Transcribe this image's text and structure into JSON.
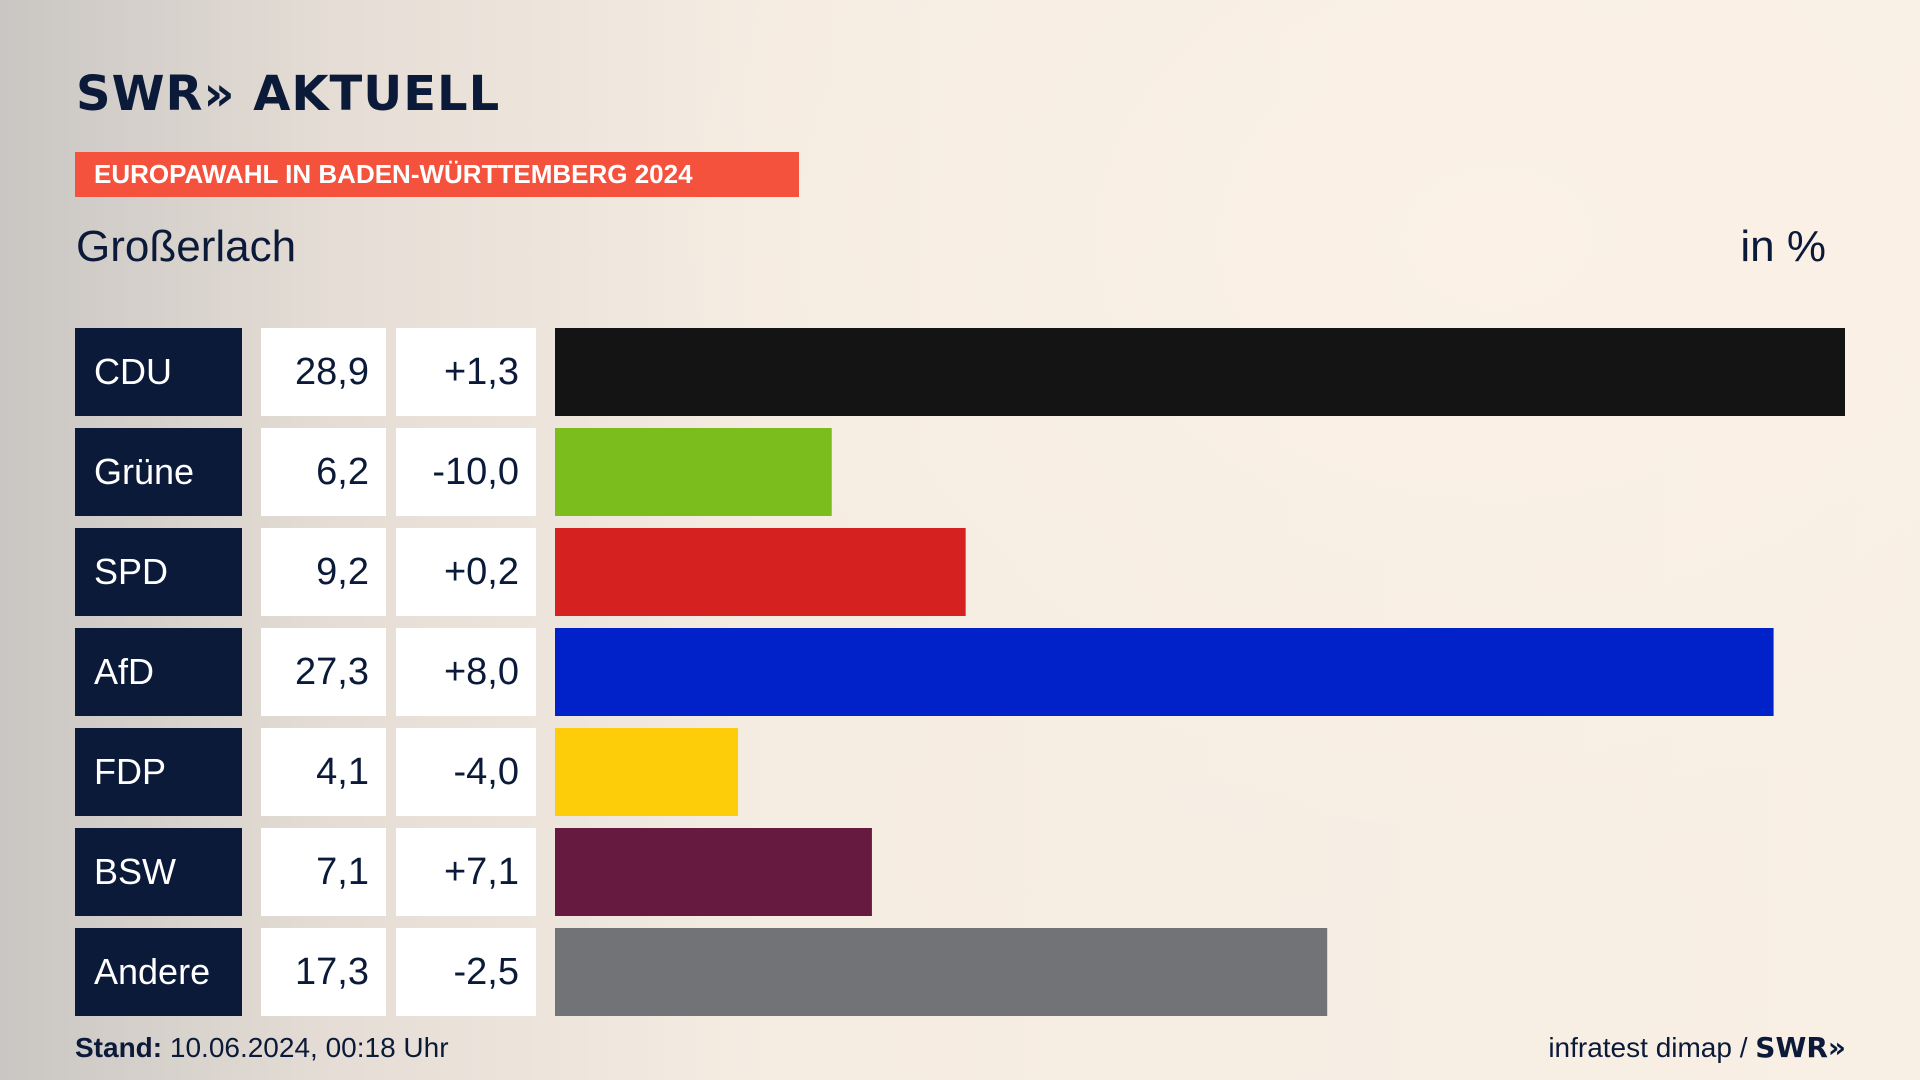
{
  "header": {
    "logo": "SWR» AKTUELL",
    "banner": "EUROPAWAHL IN BADEN-WÜRTTEMBERG 2024",
    "region": "Großerlach",
    "unit": "in %"
  },
  "footer": {
    "stand_label": "Stand:",
    "stand_value": "10.06.2024, 00:18 Uhr",
    "source": "infratest dimap /",
    "source_logo": "SWR»"
  },
  "chart_data": {
    "type": "bar",
    "orientation": "horizontal",
    "categories": [
      "CDU",
      "Grüne",
      "SPD",
      "AfD",
      "FDP",
      "BSW",
      "Andere"
    ],
    "values": [
      28.9,
      6.2,
      9.2,
      27.3,
      4.1,
      7.1,
      17.3
    ],
    "value_labels": [
      "28,9",
      "6,2",
      "9,2",
      "27,3",
      "4,1",
      "7,1",
      "17,3"
    ],
    "change_labels": [
      "+1,3",
      "-10,0",
      "+0,2",
      "+8,0",
      "-4,0",
      "+7,1",
      "-2,5"
    ],
    "changes": [
      1.3,
      -10.0,
      0.2,
      8.0,
      -4.0,
      7.1,
      -2.5
    ],
    "colors": [
      "#141414",
      "#7cbd1e",
      "#d62121",
      "#0022c8",
      "#fecd09",
      "#661a3f",
      "#727376"
    ],
    "xlim": [
      0,
      28.9
    ],
    "grid": false,
    "legend": "none"
  }
}
